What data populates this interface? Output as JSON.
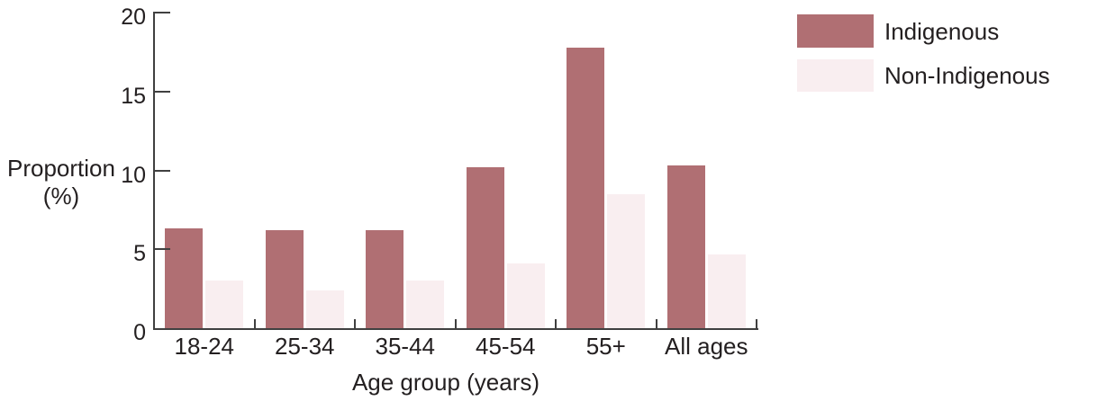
{
  "chart_data": {
    "type": "bar",
    "title": "",
    "categories": [
      "18-24",
      "25-34",
      "35-44",
      "45-54",
      "55+",
      "All ages"
    ],
    "series": [
      {
        "name": "Indigenous",
        "color": "#b06f73",
        "values": [
          6.3,
          6.2,
          6.2,
          10.2,
          17.8,
          10.3
        ]
      },
      {
        "name": "Non-Indigenous",
        "color": "#f9eef0",
        "values": [
          3.0,
          2.4,
          3.0,
          4.1,
          8.5,
          4.7
        ]
      }
    ],
    "xlabel": "Age group (years)",
    "ylabel": "Proportion (%)",
    "ylabel_lines": [
      "Proportion",
      "(%)"
    ],
    "yticks": [
      0,
      5,
      10,
      15,
      20
    ],
    "ylim": [
      0,
      20
    ],
    "grid": false,
    "legend_position": "top-right"
  },
  "legend": {
    "items": [
      {
        "label": "Indigenous",
        "color": "#b06f73"
      },
      {
        "label": "Non-Indigenous",
        "color": "#f9eef0"
      }
    ]
  },
  "colors": {
    "axis": "#404040",
    "text": "#231f20",
    "background": "#ffffff"
  }
}
